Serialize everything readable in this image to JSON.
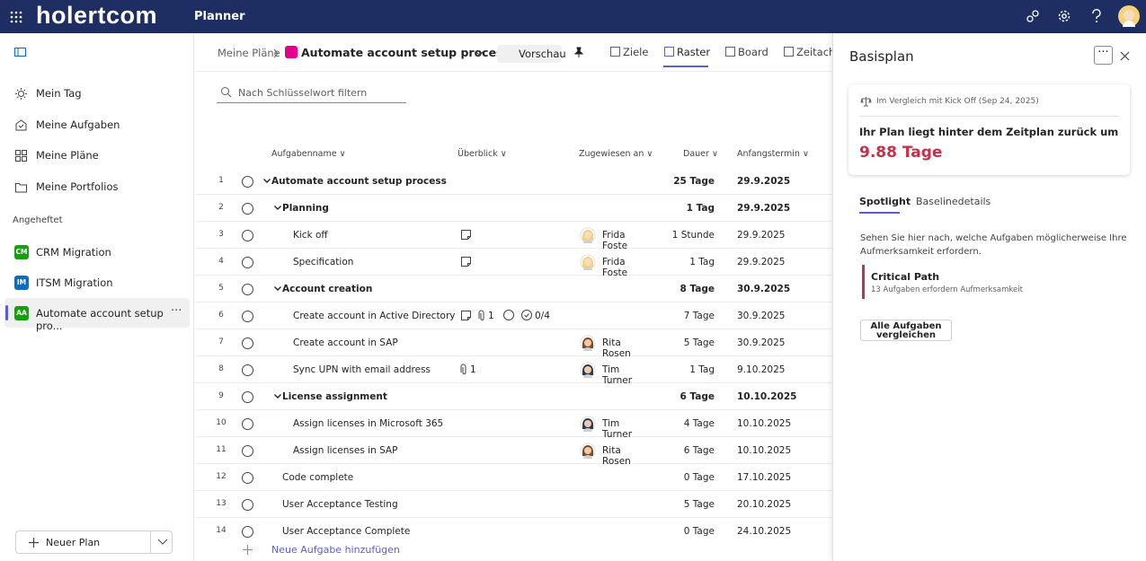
{
  "header": {
    "brand": "holertcom",
    "app": "Planner"
  },
  "nav": {
    "items": [
      "Mein Tag",
      "Meine Aufgaben",
      "Meine Pläne",
      "Meine Portfolios"
    ],
    "pinned_label": "Angeheftet",
    "pinned": [
      {
        "badge": "CM",
        "name": "CRM Migration",
        "color": "#13a10e"
      },
      {
        "badge": "IM",
        "name": "ITSM Migration",
        "color": "#0f6cbd"
      },
      {
        "badge": "AA",
        "name": "Automate account setup pro...",
        "color": "#13a10e"
      }
    ],
    "new_plan": "Neuer Plan"
  },
  "toolbar": {
    "breadcrumb": "Meine Pläne",
    "plan_title": "Automate account setup process",
    "preview": "Vorschau",
    "tabs": [
      "Ziele",
      "Raster",
      "Board",
      "Zeitachs"
    ]
  },
  "filter": {
    "placeholder": "Nach Schlüsselwort filtern"
  },
  "table": {
    "columns": [
      "Aufgabenname",
      "Überblick",
      "Zugewiesen an",
      "Dauer",
      "Anfangstermin"
    ],
    "rows": [
      {
        "num": "1",
        "name": "Automate account setup process",
        "level": 0,
        "summary": true,
        "duration": "25 Tage",
        "start": "29.9.2025"
      },
      {
        "num": "2",
        "name": "Planning",
        "level": 1,
        "summary": true,
        "duration": "1 Tag",
        "start": "29.9.2025"
      },
      {
        "num": "3",
        "name": "Kick off",
        "level": 2,
        "note": true,
        "assignee": "Frida Foste",
        "avatar": "blonde",
        "duration": "1 Stunde",
        "start": "29.9.2025"
      },
      {
        "num": "4",
        "name": "Specification",
        "level": 2,
        "note": true,
        "assignee": "Frida Foste",
        "avatar": "blonde",
        "duration": "1 Tag",
        "start": "29.9.2025"
      },
      {
        "num": "5",
        "name": "Account creation",
        "level": 1,
        "summary": true,
        "duration": "8 Tage",
        "start": "30.9.2025"
      },
      {
        "num": "6",
        "name": "Create account in Active Directory",
        "level": 2,
        "note": true,
        "attachments": "1",
        "comment": true,
        "checklist": "0/4",
        "duration": "7 Tage",
        "start": "30.9.2025"
      },
      {
        "num": "7",
        "name": "Create account in SAP",
        "level": 2,
        "assignee": "Rita Rosen",
        "avatar": "brown",
        "duration": "5 Tage",
        "start": "30.9.2025"
      },
      {
        "num": "8",
        "name": "Sync UPN with email address",
        "level": 2,
        "attachments": "1",
        "assignee": "Tim Turner",
        "avatar": "male",
        "duration": "1 Tag",
        "start": "9.10.2025"
      },
      {
        "num": "9",
        "name": "License assignment",
        "level": 1,
        "summary": true,
        "duration": "6 Tage",
        "start": "10.10.2025"
      },
      {
        "num": "10",
        "name": "Assign licenses in Microsoft 365",
        "level": 2,
        "assignee": "Tim Turner",
        "avatar": "male",
        "duration": "4 Tage",
        "start": "10.10.2025"
      },
      {
        "num": "11",
        "name": "Assign licenses in SAP",
        "level": 2,
        "assignee": "Rita Rosen",
        "avatar": "brown",
        "duration": "6 Tage",
        "start": "10.10.2025"
      },
      {
        "num": "12",
        "name": "Code complete",
        "level": 1,
        "duration": "0 Tage",
        "start": "17.10.2025"
      },
      {
        "num": "13",
        "name": "User Acceptance Testing",
        "level": 1,
        "duration": "5 Tage",
        "start": "20.10.2025"
      },
      {
        "num": "14",
        "name": "User Acceptance Complete",
        "level": 1,
        "duration": "0 Tage",
        "start": "24.10.2025"
      }
    ],
    "add_task": "Neue Aufgabe hinzufügen"
  },
  "panel": {
    "title": "Basisplan",
    "comparison": "Im Vergleich mit Kick Off (Sep 24, 2025)",
    "status": "Ihr Plan liegt hinter dem Zeitplan zurück um",
    "delay": "9.88 Tage",
    "tabs": [
      "Spotlight",
      "Baselinedetails"
    ],
    "description": "Sehen Sie hier nach, welche Aufgaben möglicherweise Ihre Aufmerksamkeit erfordern.",
    "critical_title": "Critical Path",
    "critical_subtitle": "13 Aufgaben erfordern Aufmerksamkeit",
    "compare_button": "Alle Aufgaben vergleichen"
  }
}
